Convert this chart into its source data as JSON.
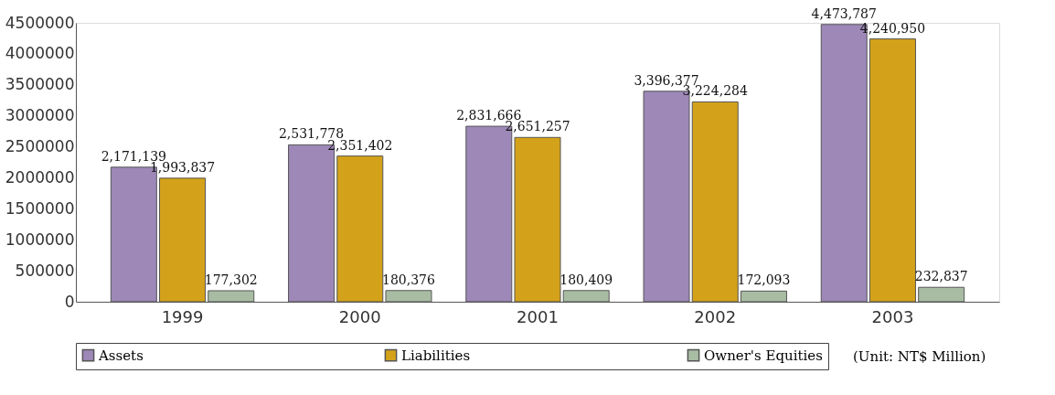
{
  "chart_data": {
    "type": "bar",
    "categories": [
      "1999",
      "2000",
      "2001",
      "2002",
      "2003"
    ],
    "series": [
      {
        "name": "Assets",
        "color": "#9d88b8",
        "values": [
          2171139,
          2531778,
          2831666,
          3396377,
          4473787
        ],
        "value_labels": [
          "2,171,139",
          "2,531,778",
          "2,831,666",
          "3,396,377",
          "4,473,787"
        ]
      },
      {
        "name": "Liabilities",
        "color": "#d4a21a",
        "values": [
          1993837,
          2351402,
          2651257,
          3224284,
          4240950
        ],
        "value_labels": [
          "1,993,837",
          "2,351,402",
          "2,651,257",
          "3,224,284",
          "4,240,950"
        ]
      },
      {
        "name": "Owner's Equities",
        "color": "#a8bca4",
        "values": [
          177302,
          180376,
          180409,
          172093,
          232837
        ],
        "value_labels": [
          "177,302",
          "180,376",
          "180,409",
          "172,093",
          "232,837"
        ]
      }
    ],
    "ylim": [
      0,
      4500000
    ],
    "yticks": [
      0,
      500000,
      1000000,
      1500000,
      2000000,
      2500000,
      3000000,
      3500000,
      4000000,
      4500000
    ],
    "legend": "bottom",
    "grid": false,
    "annotations": [
      "(Unit: NT$ Million)"
    ]
  }
}
